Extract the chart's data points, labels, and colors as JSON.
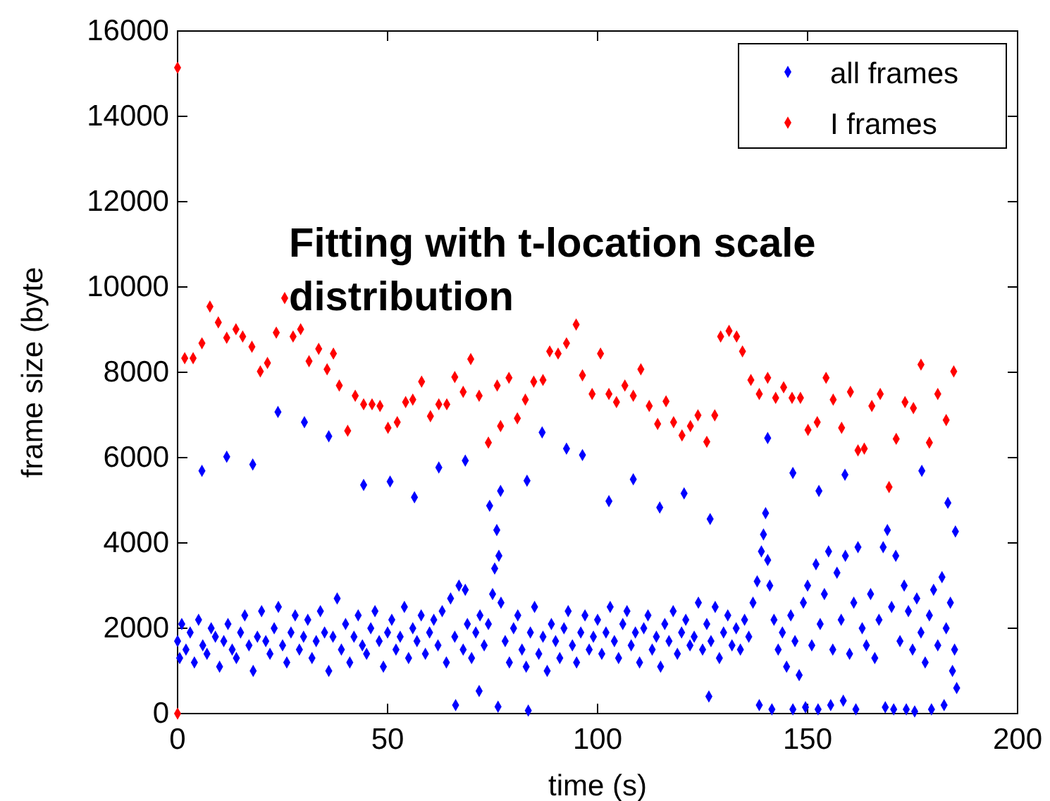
{
  "chart_data": {
    "type": "scatter",
    "xlabel": "time (s)",
    "ylabel": "frame size (byte",
    "annotations": [
      "Fitting with t-location scale distribution"
    ],
    "xlim": [
      0,
      200
    ],
    "ylim": [
      0,
      16000
    ],
    "xticks": [
      0,
      50,
      100,
      150,
      200
    ],
    "yticks": [
      0,
      2000,
      4000,
      6000,
      8000,
      10000,
      12000,
      14000,
      16000
    ],
    "legend": "top right",
    "marker": "diamond",
    "grid": false,
    "series": [
      {
        "name": "all frames",
        "color": "#0000ff",
        "x": [
          0,
          0.5,
          1,
          2,
          3,
          4,
          5,
          6,
          7,
          8,
          9,
          10,
          11,
          12,
          13,
          14,
          15,
          16,
          17,
          18,
          19,
          20,
          21,
          22,
          23,
          24,
          25,
          26,
          27,
          28,
          29,
          30,
          31,
          32,
          33,
          34,
          35,
          36,
          37,
          38,
          39,
          40,
          41,
          42,
          43,
          44,
          45,
          46,
          47,
          48,
          49,
          50,
          51,
          52,
          53,
          54,
          55,
          56,
          57,
          58,
          59,
          60,
          61,
          62,
          63,
          64,
          65,
          66,
          66.2,
          67,
          68,
          68.5,
          69,
          70,
          71,
          71.8,
          72,
          73,
          74,
          75,
          75.5,
          76,
          76.3,
          76.5,
          77,
          78,
          79,
          80,
          81,
          82,
          83,
          83.5,
          84,
          85,
          86,
          87,
          88,
          89,
          90,
          91,
          92,
          93,
          94,
          95,
          96,
          97,
          98,
          99,
          100,
          101,
          102,
          103,
          104,
          105,
          106,
          107,
          108,
          109,
          110,
          111,
          112,
          113,
          114,
          115,
          116,
          117,
          118,
          119,
          120,
          121,
          122,
          123,
          124,
          125,
          126,
          126.5,
          127,
          128,
          129,
          130,
          131,
          132,
          133,
          134,
          135,
          136,
          137,
          138,
          138.5,
          139,
          139.5,
          140,
          140.5,
          141,
          141.5,
          142,
          143,
          144,
          145,
          146,
          146.5,
          147,
          148,
          149,
          149.5,
          150,
          151,
          152,
          152.5,
          153,
          154,
          155,
          155.5,
          156,
          157,
          158,
          158.5,
          159,
          160,
          161,
          161.5,
          162,
          163,
          164,
          165,
          166,
          167,
          168,
          168.5,
          169,
          170,
          170.5,
          171,
          172,
          173,
          173.5,
          174,
          175,
          175.5,
          176,
          177,
          178,
          179,
          179.5,
          180,
          181,
          182,
          182.5,
          183,
          184,
          184.5,
          185,
          185.5,
          5.8,
          11.7,
          17.9,
          23.9,
          30.2,
          36,
          44.3,
          50.6,
          56.4,
          62.2,
          68.5,
          74.3,
          76.9,
          83.2,
          86.8,
          92.6,
          96.4,
          102.7,
          108.5,
          114.8,
          120.6,
          126.8,
          140.5,
          146.5,
          152.7,
          158.9,
          177.2,
          183.4,
          185.2
        ],
        "values": [
          1700,
          1300,
          2100,
          1500,
          1900,
          1200,
          2200,
          1600,
          1400,
          2000,
          1800,
          1100,
          1700,
          2100,
          1500,
          1300,
          1900,
          2300,
          1600,
          1000,
          1800,
          2400,
          1700,
          1400,
          2000,
          2500,
          1600,
          1200,
          1900,
          2300,
          1500,
          1800,
          2200,
          1300,
          1700,
          2400,
          1900,
          1000,
          1800,
          2700,
          1500,
          2100,
          1200,
          1800,
          2300,
          1600,
          1400,
          2000,
          2400,
          1700,
          1100,
          1900,
          2200,
          1500,
          1800,
          2500,
          1300,
          2000,
          1700,
          2300,
          1400,
          1900,
          2200,
          1600,
          2400,
          1200,
          2700,
          1800,
          200,
          3000,
          1500,
          2900,
          2100,
          1300,
          1900,
          530,
          2300,
          1600,
          2100,
          2800,
          3400,
          4300,
          160,
          3700,
          2600,
          1700,
          1200,
          2000,
          2300,
          1500,
          1100,
          70,
          1900,
          2500,
          1400,
          1800,
          1000,
          2100,
          1700,
          1300,
          2000,
          2400,
          1600,
          1200,
          1900,
          2300,
          1500,
          1800,
          2200,
          1400,
          1900,
          2500,
          1700,
          1300,
          2100,
          2400,
          1600,
          1900,
          1200,
          2000,
          2300,
          1500,
          1800,
          1100,
          2100,
          1700,
          2400,
          1400,
          1900,
          2200,
          1600,
          1800,
          2600,
          1500,
          2100,
          400,
          1700,
          2500,
          1300,
          1900,
          2300,
          1600,
          2000,
          1500,
          2200,
          1800,
          2600,
          3100,
          200,
          3800,
          4200,
          4700,
          3600,
          3000,
          100,
          2200,
          1500,
          1900,
          1100,
          2300,
          100,
          1700,
          900,
          2600,
          150,
          3000,
          1600,
          3500,
          100,
          2100,
          2800,
          3800,
          200,
          1500,
          3300,
          2200,
          300,
          3700,
          1400,
          2600,
          100,
          3900,
          2000,
          1600,
          2800,
          1300,
          2200,
          3900,
          150,
          4300,
          2500,
          100,
          3700,
          1700,
          3000,
          100,
          2400,
          1500,
          50,
          2700,
          1900,
          1200,
          2300,
          100,
          2900,
          1600,
          3200,
          200,
          2000,
          2600,
          1000,
          1500,
          600,
          5690,
          6020,
          5840,
          7070,
          6830,
          6500,
          5360,
          5440,
          5070,
          5770,
          5930,
          4870,
          5220,
          5460,
          6590,
          6210,
          6060,
          4980,
          5490,
          4830,
          5160,
          4560,
          6460,
          5640,
          5220,
          5600,
          5690,
          4940,
          4270
        ]
      },
      {
        "name": "I frames",
        "color": "#ff0000",
        "x": [
          0,
          0,
          1.7,
          3.7,
          5.8,
          7.7,
          9.7,
          11.7,
          13.9,
          15.5,
          17.7,
          19.7,
          21.4,
          23.5,
          25.5,
          27.5,
          29.3,
          31.3,
          33.6,
          35.6,
          37.1,
          38.5,
          40.5,
          42.3,
          44.3,
          46.3,
          48.2,
          50.1,
          52.3,
          54.3,
          56,
          58.1,
          60.2,
          62.2,
          64.1,
          66,
          68,
          69.8,
          71.8,
          74,
          76.1,
          76.9,
          78.9,
          80.9,
          82.8,
          84.8,
          87,
          88.6,
          90.6,
          92.6,
          94.9,
          96.4,
          98.7,
          100.7,
          102.7,
          104.5,
          106.5,
          108.5,
          110.3,
          112.3,
          114.3,
          116.3,
          118.1,
          120.1,
          122.1,
          123.9,
          126,
          127.9,
          129.3,
          131.3,
          133.1,
          134.5,
          136.5,
          138.5,
          140.5,
          142.4,
          144.3,
          146.3,
          148.3,
          150.1,
          152.3,
          154.4,
          156.1,
          158.1,
          160.2,
          162,
          163.5,
          165.3,
          167.3,
          169.4,
          171.1,
          173.2,
          175.2,
          177,
          179,
          181,
          183,
          184.8
        ],
        "values": [
          15140,
          0,
          8330,
          8330,
          8680,
          9540,
          9170,
          8810,
          9010,
          8840,
          8600,
          8020,
          8220,
          8930,
          9740,
          8840,
          9010,
          8260,
          8550,
          8070,
          8440,
          7690,
          6630,
          7450,
          7250,
          7250,
          7210,
          6700,
          6830,
          7300,
          7360,
          7780,
          6970,
          7250,
          7250,
          7890,
          7540,
          8310,
          7450,
          6350,
          7690,
          6740,
          7870,
          6920,
          7360,
          7780,
          7820,
          8490,
          8440,
          8680,
          9120,
          7930,
          7490,
          8440,
          7490,
          7300,
          7690,
          7450,
          8070,
          7210,
          6790,
          7320,
          6830,
          6520,
          6740,
          6990,
          6370,
          6990,
          8840,
          8970,
          8840,
          8490,
          7820,
          7490,
          7870,
          7400,
          7650,
          7400,
          7400,
          6650,
          6830,
          7870,
          7360,
          6700,
          7540,
          6170,
          6210,
          7210,
          7490,
          5310,
          6440,
          7300,
          7160,
          8180,
          6350,
          7490,
          6880,
          8020
        ]
      }
    ]
  }
}
